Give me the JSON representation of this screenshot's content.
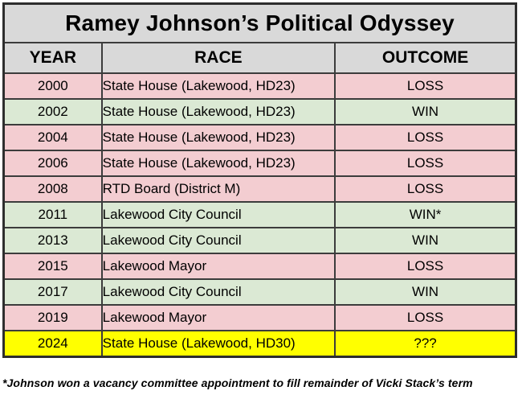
{
  "colors": {
    "header_bg": "#d9d9d9",
    "loss": "#f3cdd1",
    "win": "#dbe9d4",
    "unknown": "#ffff00",
    "border": "#3c3c3c",
    "text": "#000000"
  },
  "table": {
    "title": "Ramey Johnson’s Political Odyssey",
    "columns": [
      "YEAR",
      "RACE",
      "OUTCOME"
    ],
    "rows": [
      {
        "year": "2000",
        "race": "State House (Lakewood, HD23)",
        "outcome": "LOSS",
        "tone": "loss"
      },
      {
        "year": "2002",
        "race": "State House (Lakewood, HD23)",
        "outcome": "WIN",
        "tone": "win"
      },
      {
        "year": "2004",
        "race": "State House (Lakewood, HD23)",
        "outcome": "LOSS",
        "tone": "loss"
      },
      {
        "year": "2006",
        "race": "State House (Lakewood, HD23)",
        "outcome": "LOSS",
        "tone": "loss"
      },
      {
        "year": "2008",
        "race": "RTD Board (District M)",
        "outcome": "LOSS",
        "tone": "loss"
      },
      {
        "year": "2011",
        "race": "Lakewood City Council",
        "outcome": "WIN*",
        "tone": "win"
      },
      {
        "year": "2013",
        "race": "Lakewood City Council",
        "outcome": "WIN",
        "tone": "win"
      },
      {
        "year": "2015",
        "race": "Lakewood Mayor",
        "outcome": "LOSS",
        "tone": "loss"
      },
      {
        "year": "2017",
        "race": "Lakewood City Council",
        "outcome": "WIN",
        "tone": "win"
      },
      {
        "year": "2019",
        "race": "Lakewood Mayor",
        "outcome": "LOSS",
        "tone": "loss"
      },
      {
        "year": "2024",
        "race": "State House (Lakewood, HD30)",
        "outcome": "???",
        "tone": "unknown"
      }
    ]
  },
  "footnote": "*Johnson won a vacancy committee appointment to fill remainder of Vicki Stack’s term",
  "chart_data": {
    "type": "table",
    "title": "Ramey Johnson’s Political Odyssey",
    "columns": [
      "YEAR",
      "RACE",
      "OUTCOME"
    ],
    "rows": [
      [
        "2000",
        "State House (Lakewood, HD23)",
        "LOSS"
      ],
      [
        "2002",
        "State House (Lakewood, HD23)",
        "WIN"
      ],
      [
        "2004",
        "State House (Lakewood, HD23)",
        "LOSS"
      ],
      [
        "2006",
        "State House (Lakewood, HD23)",
        "LOSS"
      ],
      [
        "2008",
        "RTD Board (District M)",
        "LOSS"
      ],
      [
        "2011",
        "Lakewood City Council",
        "WIN*"
      ],
      [
        "2013",
        "Lakewood City Council",
        "WIN"
      ],
      [
        "2015",
        "Lakewood Mayor",
        "LOSS"
      ],
      [
        "2017",
        "Lakewood City Council",
        "WIN"
      ],
      [
        "2019",
        "Lakewood Mayor",
        "LOSS"
      ],
      [
        "2024",
        "State House (Lakewood, HD30)",
        "???"
      ]
    ],
    "row_color_legend": {
      "loss": "pink",
      "win": "light-green",
      "unknown": "yellow"
    },
    "footnote": "*Johnson won a vacancy committee appointment to fill remainder of Vicki Stack’s term"
  }
}
